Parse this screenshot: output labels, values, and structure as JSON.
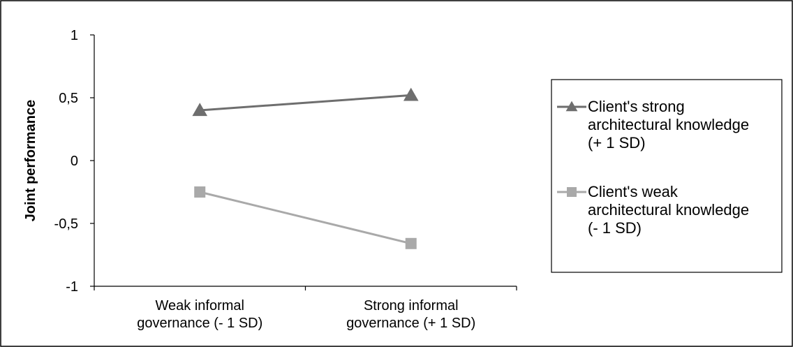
{
  "chart_data": {
    "type": "line",
    "title": "",
    "xlabel": "",
    "ylabel": "Joint performance",
    "categories": [
      [
        "Weak informal",
        "governance (- 1 SD)"
      ],
      [
        "Strong informal",
        "governance (+ 1 SD)"
      ]
    ],
    "yticks": [
      "1",
      "0,5",
      "0",
      "-0,5",
      "-1"
    ],
    "ylim": [
      -1,
      1
    ],
    "series": [
      {
        "name": [
          "Client's strong",
          "architectural knowledge",
          "(+ 1 SD)"
        ],
        "values": [
          0.4,
          0.52
        ],
        "color": "#6e6e6e",
        "marker": "triangle"
      },
      {
        "name": [
          "Client's weak",
          "architectural knowledge",
          "(- 1 SD)"
        ],
        "values": [
          -0.25,
          -0.66
        ],
        "color": "#a9a9a9",
        "marker": "square"
      }
    ],
    "legend": "right",
    "grid": false
  }
}
